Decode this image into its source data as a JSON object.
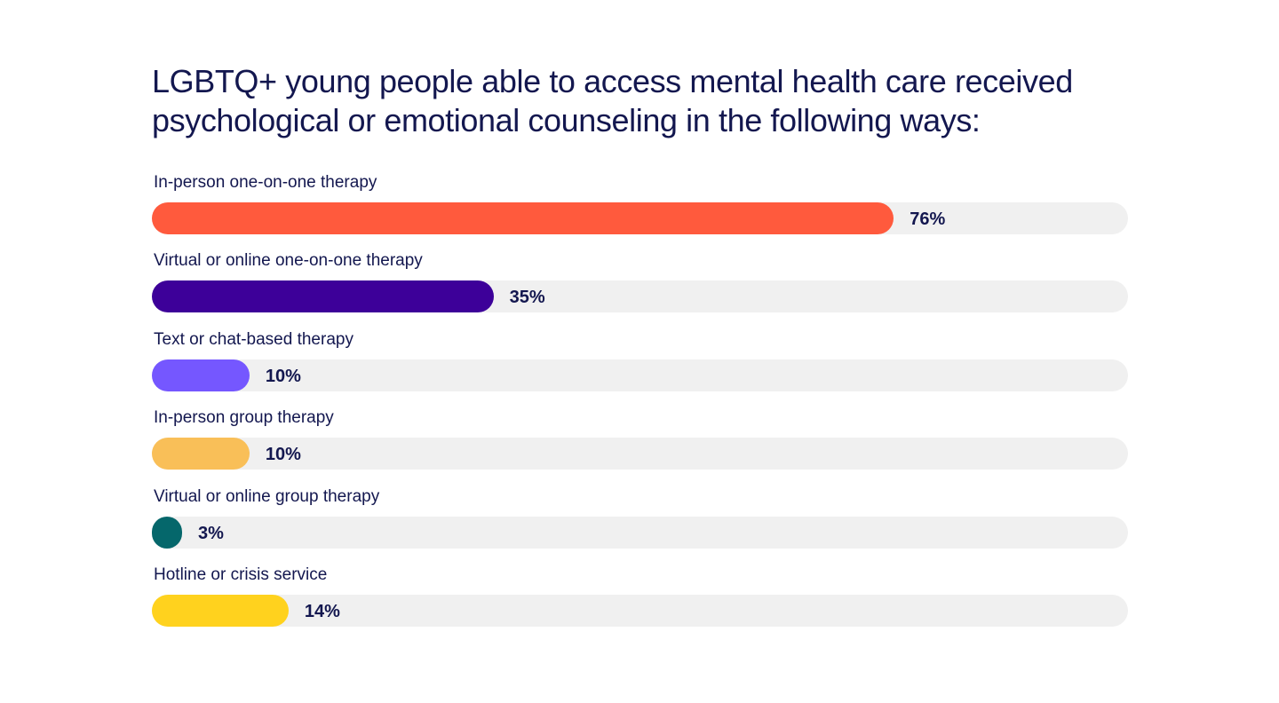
{
  "chart_data": {
    "type": "bar",
    "orientation": "horizontal",
    "title": "LGBTQ+ young people able to access mental health care received psychological or emotional counseling in the following ways:",
    "categories": [
      "In-person one-on-one therapy",
      "Virtual or online one-on-one therapy",
      "Text or chat-based therapy",
      "In-person group therapy",
      "Virtual or online group therapy",
      "Hotline or crisis service"
    ],
    "values": [
      76,
      35,
      10,
      10,
      3,
      14
    ],
    "value_labels": [
      "76%",
      "35%",
      "10%",
      "10%",
      "3%",
      "14%"
    ],
    "colors": [
      "#ff5a3d",
      "#3d0099",
      "#7557ff",
      "#f9bf58",
      "#05676b",
      "#ffd21e"
    ],
    "xlim": [
      0,
      100
    ],
    "grid": false,
    "legend": "none"
  }
}
